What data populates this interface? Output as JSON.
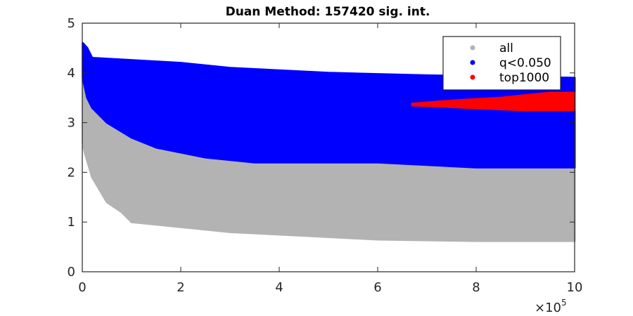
{
  "chart_data": {
    "type": "scatter",
    "title": "Duan Method: 157420 sig. int.",
    "xlabel": "",
    "ylabel": "",
    "xlim": [
      0,
      1000000
    ],
    "ylim": [
      0,
      5
    ],
    "x_multiplier_label": "×10",
    "x_multiplier_exponent": "5",
    "x_ticks": [
      {
        "value": 0,
        "label": "0"
      },
      {
        "value": 200000,
        "label": "2"
      },
      {
        "value": 400000,
        "label": "4"
      },
      {
        "value": 600000,
        "label": "6"
      },
      {
        "value": 800000,
        "label": "8"
      },
      {
        "value": 1000000,
        "label": "10"
      }
    ],
    "y_ticks": [
      {
        "value": 0,
        "label": "0"
      },
      {
        "value": 1,
        "label": "1"
      },
      {
        "value": 2,
        "label": "2"
      },
      {
        "value": 3,
        "label": "3"
      },
      {
        "value": 4,
        "label": "4"
      },
      {
        "value": 5,
        "label": "5"
      }
    ],
    "grid": false,
    "legend_position": "top-right",
    "series": [
      {
        "name": "all",
        "color": "#b3b3b3",
        "band_upper": [
          [
            1000,
            3.9
          ],
          [
            5000,
            3.6
          ],
          [
            20000,
            3.3
          ],
          [
            50000,
            3.1
          ],
          [
            100000,
            2.9
          ],
          [
            200000,
            2.7
          ],
          [
            400000,
            2.6
          ],
          [
            700000,
            2.5
          ],
          [
            1000000,
            2.5
          ]
        ],
        "band_lower": [
          [
            1000,
            2.6
          ],
          [
            5000,
            2.4
          ],
          [
            20000,
            1.9
          ],
          [
            50000,
            1.4
          ],
          [
            80000,
            1.2
          ],
          [
            100000,
            1.0
          ],
          [
            150000,
            0.95
          ],
          [
            200000,
            0.9
          ],
          [
            300000,
            0.8
          ],
          [
            400000,
            0.75
          ],
          [
            600000,
            0.65
          ],
          [
            800000,
            0.62
          ],
          [
            1000000,
            0.62
          ]
        ]
      },
      {
        "name": "q<0.050",
        "color": "#0000ff",
        "band_upper": [
          [
            1000,
            4.6
          ],
          [
            10000,
            4.5
          ],
          [
            20000,
            4.3
          ],
          [
            200000,
            4.2
          ],
          [
            300000,
            4.1
          ],
          [
            500000,
            4.0
          ],
          [
            700000,
            3.95
          ],
          [
            1000000,
            3.9
          ]
        ],
        "band_lower": [
          [
            1000,
            3.9
          ],
          [
            10000,
            3.5
          ],
          [
            20000,
            3.3
          ],
          [
            50000,
            3.0
          ],
          [
            100000,
            2.7
          ],
          [
            150000,
            2.5
          ],
          [
            250000,
            2.3
          ],
          [
            350000,
            2.2
          ],
          [
            600000,
            2.2
          ],
          [
            800000,
            2.1
          ],
          [
            1000000,
            2.1
          ]
        ]
      },
      {
        "name": "top1000",
        "color": "#ff0000",
        "band_upper": [
          [
            670000,
            3.38
          ],
          [
            720000,
            3.42
          ],
          [
            780000,
            3.46
          ],
          [
            850000,
            3.5
          ],
          [
            900000,
            3.55
          ],
          [
            950000,
            3.6
          ],
          [
            1000000,
            3.6
          ]
        ],
        "band_lower": [
          [
            670000,
            3.35
          ],
          [
            720000,
            3.33
          ],
          [
            780000,
            3.3
          ],
          [
            850000,
            3.27
          ],
          [
            900000,
            3.25
          ],
          [
            950000,
            3.25
          ],
          [
            1000000,
            3.25
          ]
        ]
      }
    ]
  }
}
